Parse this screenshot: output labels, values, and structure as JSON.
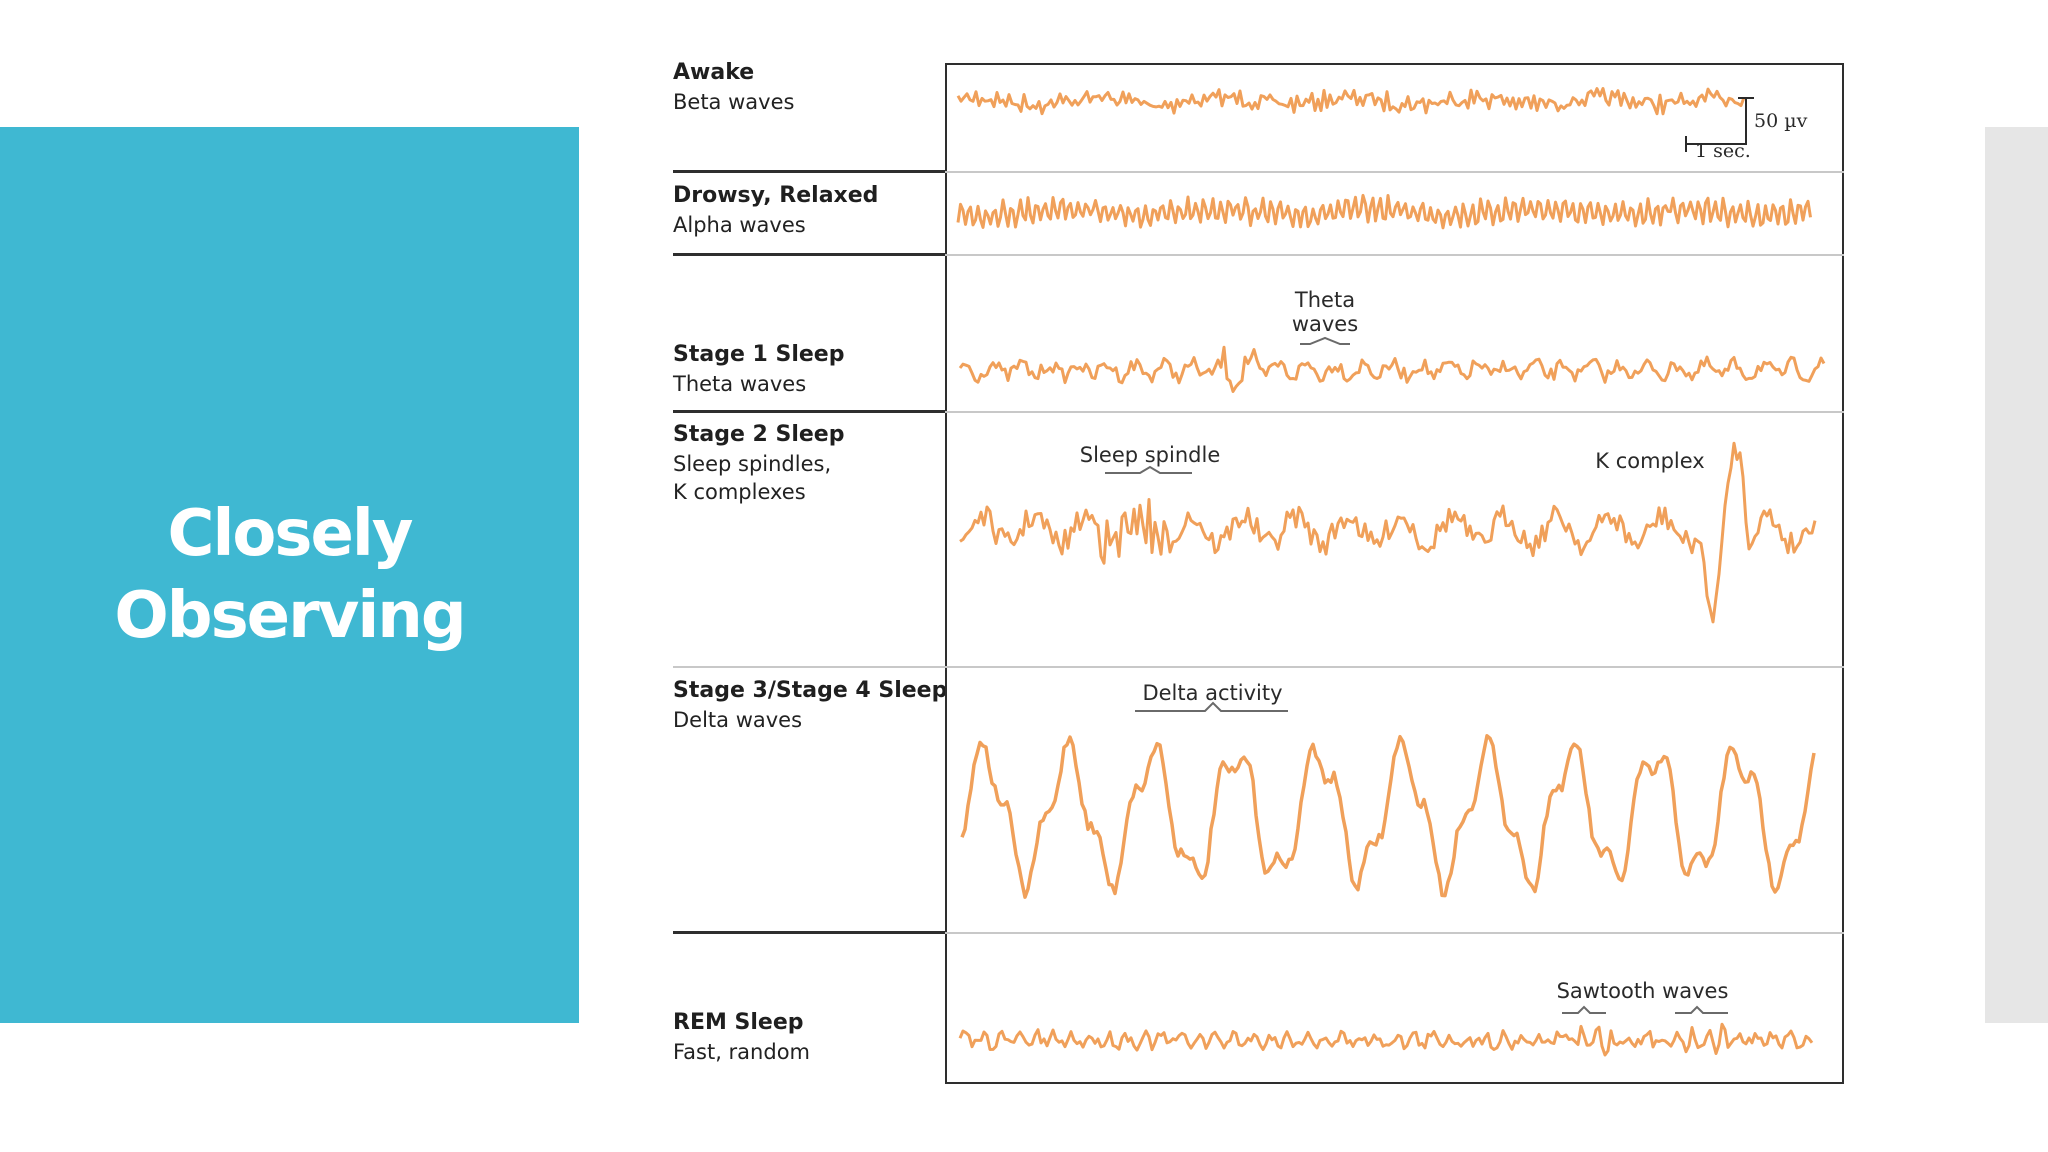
{
  "slide": {
    "title": "Closely\nObserving",
    "accent_color": "#3fb8d2",
    "strip_color": "#e6e6e6"
  },
  "figure": {
    "wave_color": "#f0a05a",
    "stages": [
      {
        "name": "Awake",
        "description": "Beta waves"
      },
      {
        "name": "Drowsy, Relaxed",
        "description": "Alpha waves"
      },
      {
        "name": "Stage 1 Sleep",
        "description": "Theta waves"
      },
      {
        "name": "Stage 2 Sleep",
        "description": "Sleep spindles,\nK complexes"
      },
      {
        "name": "Stage 3/Stage 4 Sleep",
        "description": "Delta waves"
      },
      {
        "name": "REM Sleep",
        "description": "Fast, random"
      }
    ],
    "annotations": {
      "theta": "Theta\nwaves",
      "spindle": "Sleep spindle",
      "k_complex": "K complex",
      "delta": "Delta activity",
      "sawtooth": "Sawtooth waves"
    },
    "scale": {
      "amplitude": "50 µv",
      "time": "1 sec."
    }
  }
}
